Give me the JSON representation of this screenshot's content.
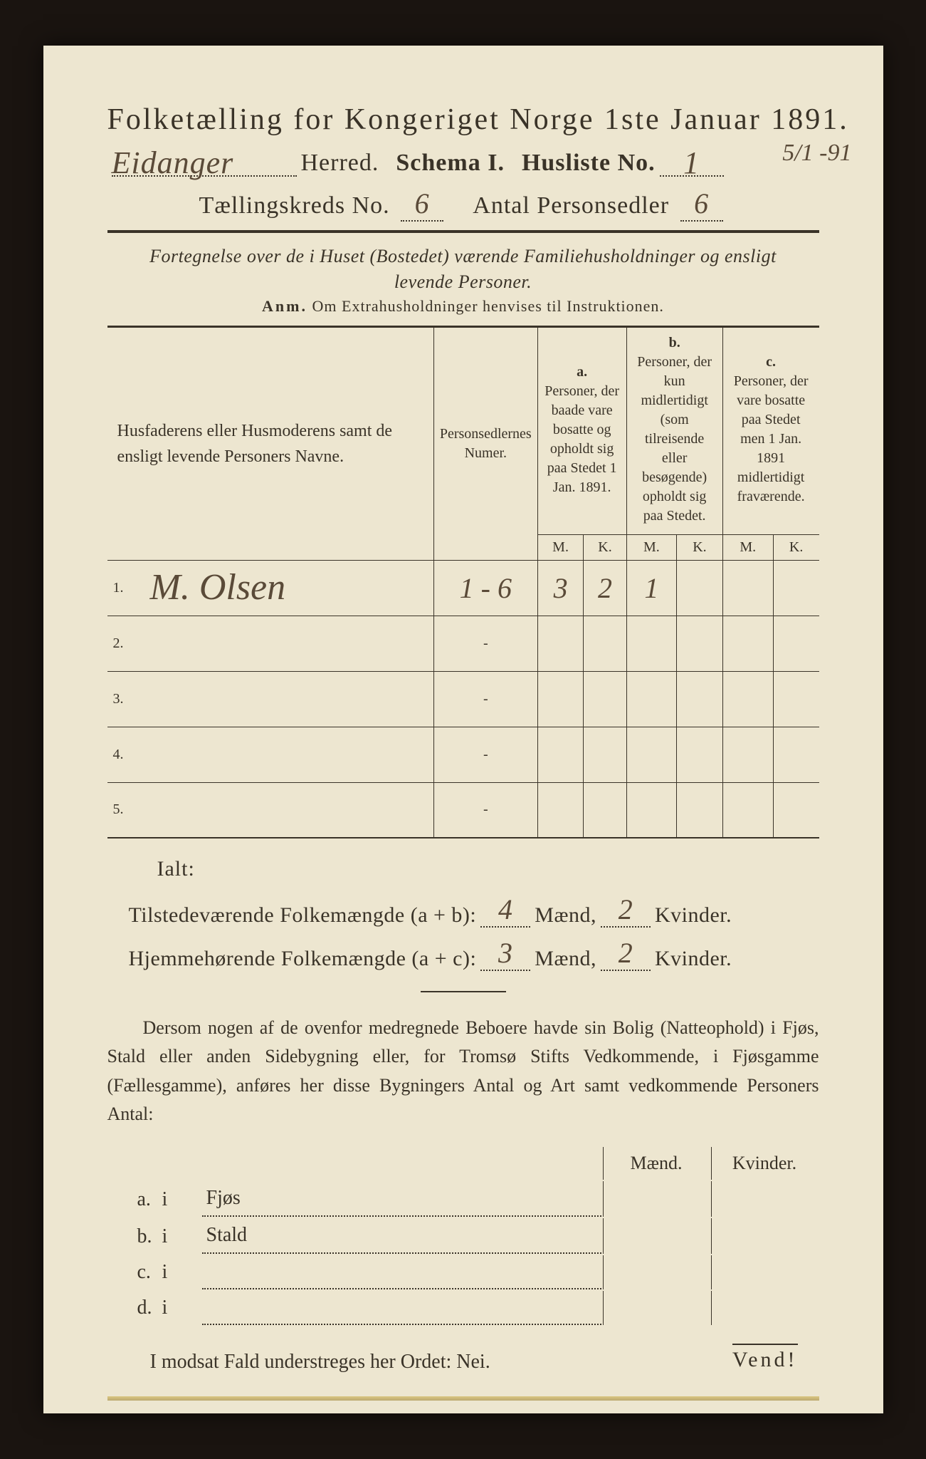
{
  "background_color": "#1a1410",
  "paper_color": "#ede6d0",
  "ink_color": "#3a3328",
  "hand_color": "#5a4a38",
  "title": "Folketælling for Kongeriget Norge 1ste Januar 1891.",
  "herred_handwritten": "Eidanger",
  "herred_label": "Herred.",
  "schema_label": "Schema I.",
  "husliste_label": "Husliste No.",
  "husliste_no": "1",
  "margin_date": "5/1 -91",
  "kreds_label": "Tællingskreds No.",
  "kreds_no": "6",
  "antal_label": "Antal Personsedler",
  "antal_val": "6",
  "subtitle_line1": "Fortegnelse over de i Huset (Bostedet) værende Familiehusholdninger og ensligt",
  "subtitle_line2": "levende Personer.",
  "anm_prefix": "Anm.",
  "anm_text": "Om Extrahusholdninger henvises til Instruktionen.",
  "table": {
    "col1_header": "Husfaderens eller Husmoderens samt de ensligt levende Personers Navne.",
    "col2_header": "Personsedlernes Numer.",
    "col_a_label": "a.",
    "col_a_text": "Personer, der baade vare bosatte og opholdt sig paa Stedet 1 Jan. 1891.",
    "col_b_label": "b.",
    "col_b_text": "Personer, der kun midlertidigt (som tilreisende eller besøgende) opholdt sig paa Stedet.",
    "col_c_label": "c.",
    "col_c_text": "Personer, der vare bosatte paa Stedet men 1 Jan. 1891 midlertidigt fraværende.",
    "m_label": "M.",
    "k_label": "K.",
    "rows": [
      {
        "num": "1.",
        "name": "M. Olsen",
        "sedler": "1 - 6",
        "a_m": "3",
        "a_k": "2",
        "b_m": "1",
        "b_k": "",
        "c_m": "",
        "c_k": ""
      },
      {
        "num": "2.",
        "name": "",
        "sedler": "-",
        "a_m": "",
        "a_k": "",
        "b_m": "",
        "b_k": "",
        "c_m": "",
        "c_k": ""
      },
      {
        "num": "3.",
        "name": "",
        "sedler": "-",
        "a_m": "",
        "a_k": "",
        "b_m": "",
        "b_k": "",
        "c_m": "",
        "c_k": ""
      },
      {
        "num": "4.",
        "name": "",
        "sedler": "-",
        "a_m": "",
        "a_k": "",
        "b_m": "",
        "b_k": "",
        "c_m": "",
        "c_k": ""
      },
      {
        "num": "5.",
        "name": "",
        "sedler": "-",
        "a_m": "",
        "a_k": "",
        "b_m": "",
        "b_k": "",
        "c_m": "",
        "c_k": ""
      }
    ]
  },
  "ialt_label": "Ialt:",
  "tilstede_label": "Tilstedeværende Folkemængde (a + b):",
  "tilstede_m": "4",
  "tilstede_k": "2",
  "hjemme_label": "Hjemmehørende Folkemængde (a + c):",
  "hjemme_m": "3",
  "hjemme_k": "2",
  "maend_label": "Mænd,",
  "kvinder_label": "Kvinder.",
  "para_text": "Dersom nogen af de ovenfor medregnede Beboere havde sin Bolig (Natteophold) i Fjøs, Stald eller anden Sidebygning eller, for Tromsø Stifts Vedkommende, i Fjøsgamme (Fællesgamme), anføres her disse Bygningers Antal og Art samt vedkommende Personers Antal:",
  "lower": {
    "maend_header": "Mænd.",
    "kvinder_header": "Kvinder.",
    "rows": [
      {
        "a": "a.",
        "i": "i",
        "label": "Fjøs"
      },
      {
        "a": "b.",
        "i": "i",
        "label": "Stald"
      },
      {
        "a": "c.",
        "i": "i",
        "label": ""
      },
      {
        "a": "d.",
        "i": "i",
        "label": ""
      }
    ]
  },
  "nei_line": "I modsat Fald understreges her Ordet: Nei.",
  "vend": "Vend!"
}
